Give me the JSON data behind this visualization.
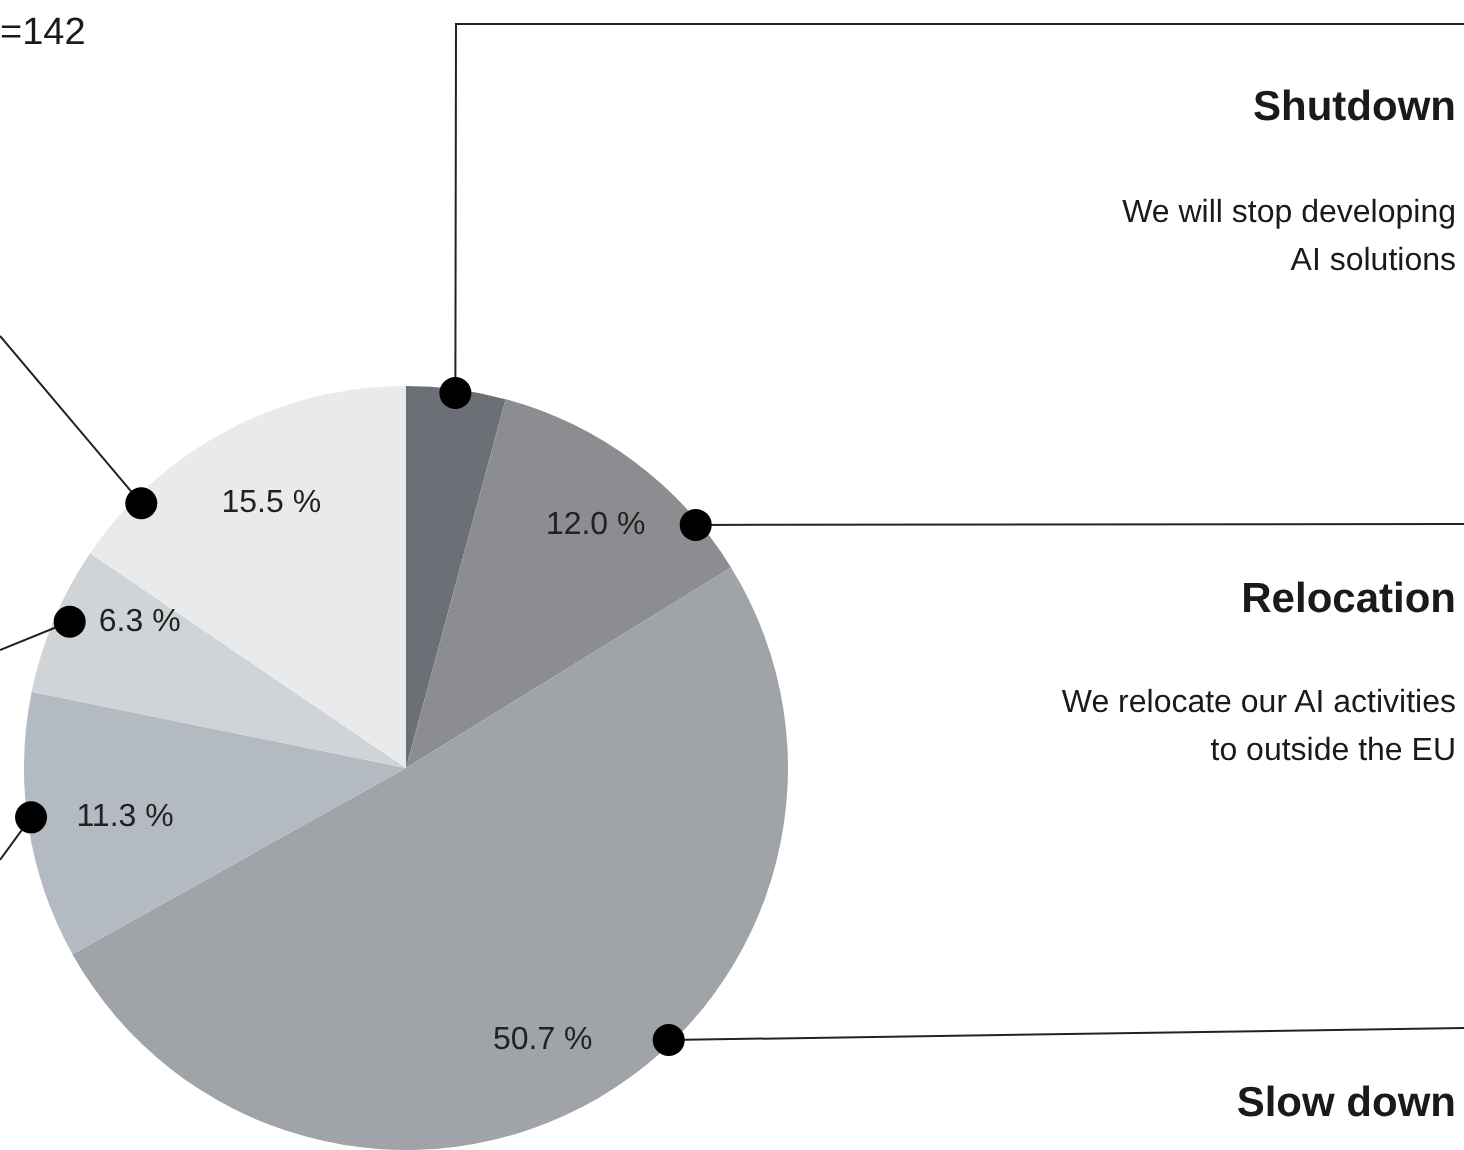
{
  "chart_data": {
    "type": "pie",
    "categories": [
      null,
      null,
      null,
      null,
      null,
      null
    ],
    "values": [
      4.2,
      12.0,
      50.7,
      11.3,
      6.3,
      15.5
    ],
    "colors": [
      "#6c6f76",
      "#8b8d90",
      "#a0a4a9",
      "#b4bac1",
      "#d1d4d7",
      "#e9eaec"
    ],
    "value_labels": [
      null,
      "12.0 %",
      "50.7 %",
      "11.3 %",
      "6.3 %",
      "15.5 %"
    ],
    "annotations": [
      "=142",
      "Shutdown",
      "We will stop developing AI solutions",
      "Relocation",
      "We relocate our AI activities to outside the EU",
      "Slow down"
    ],
    "legend": false
  }
}
